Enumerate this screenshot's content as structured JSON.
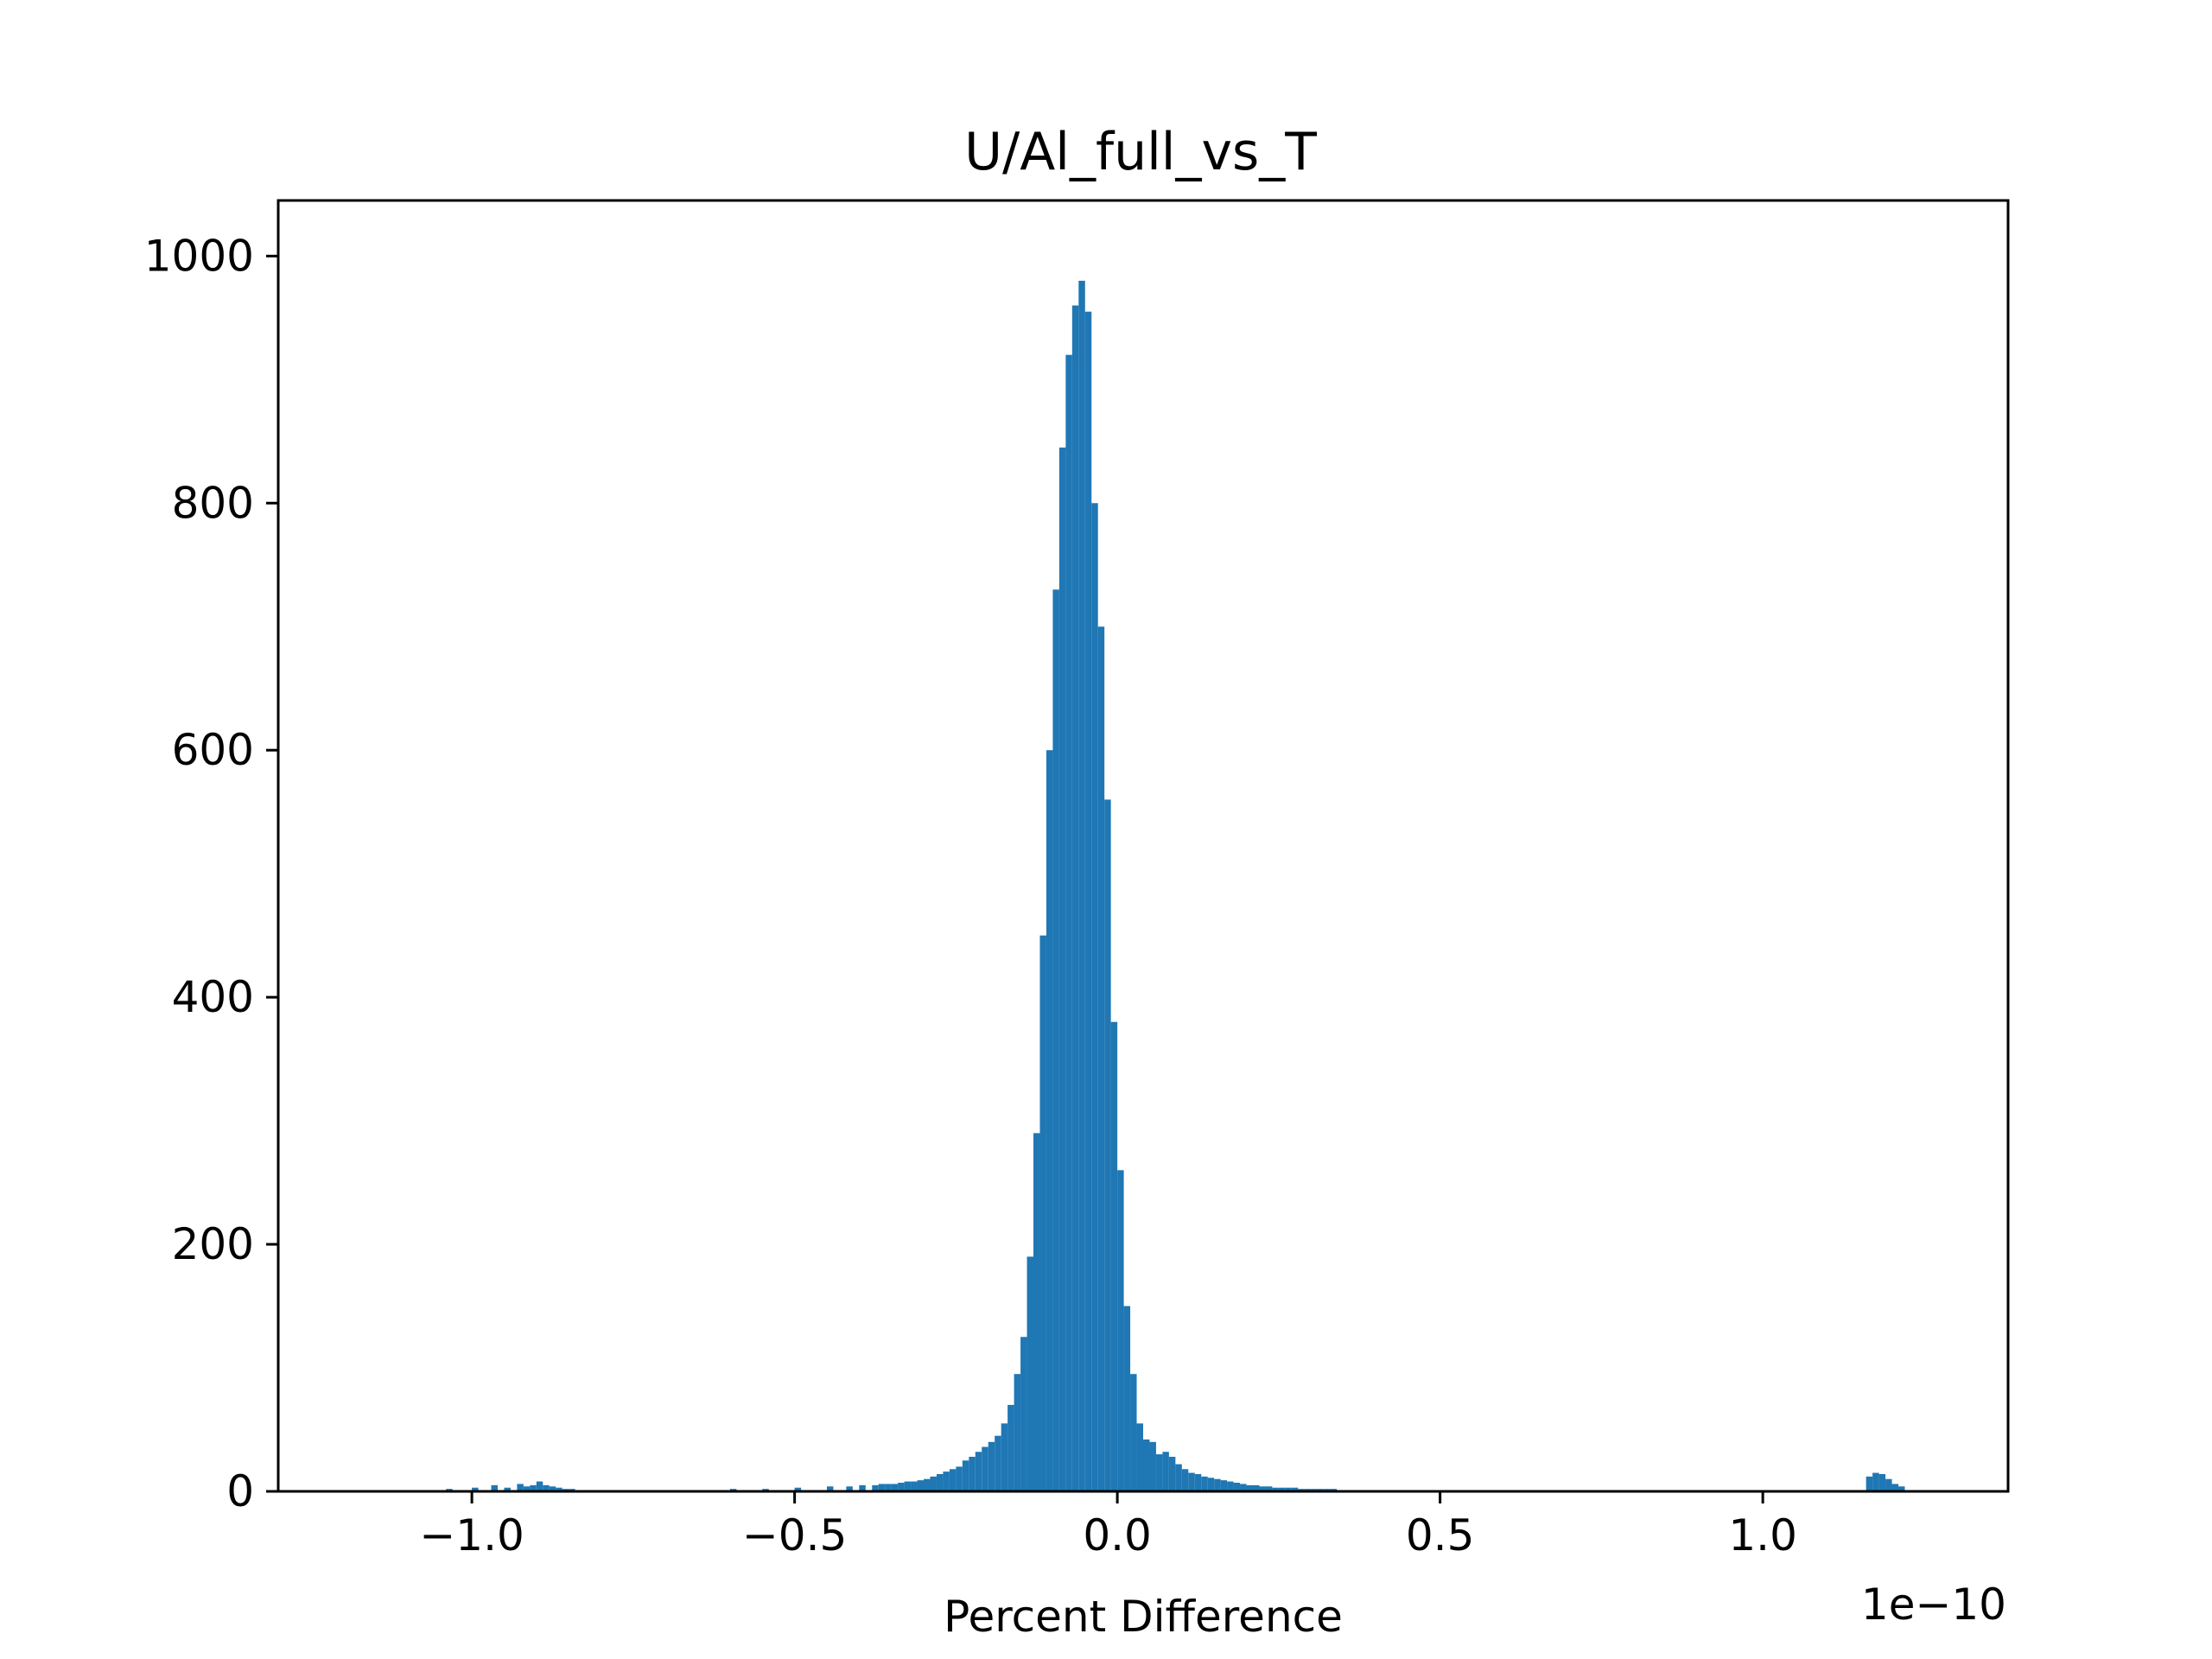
{
  "chart_data": {
    "type": "bar",
    "title": "U/Al_full_vs_T",
    "xlabel": "Percent Difference",
    "ylabel": "",
    "x_offset_label": "1e−10",
    "x_scale": 1e-10,
    "xlim": [
      -1.3,
      1.38
    ],
    "ylim": [
      0,
      1045
    ],
    "xticks": [
      -1.0,
      -0.5,
      0.0,
      0.5,
      1.0
    ],
    "xtick_labels": [
      "−1.0",
      "−0.5",
      "0.0",
      "0.5",
      "1.0"
    ],
    "yticks": [
      0,
      200,
      400,
      600,
      800,
      1000
    ],
    "ytick_labels": [
      "0",
      "200",
      "400",
      "600",
      "800",
      "1000"
    ],
    "grid": false,
    "bar_color": "#1f77b4",
    "bin_width": 0.01,
    "series": [
      {
        "bin_starts": [
          -1.04,
          -1.0,
          -0.97,
          -0.95,
          -0.93,
          -0.92,
          -0.91,
          -0.9,
          -0.89,
          -0.88,
          -0.87,
          -0.86,
          -0.85,
          -0.84,
          -0.82,
          -0.6,
          -0.55,
          -0.5,
          -0.45,
          -0.42,
          -0.4,
          -0.38,
          -0.37,
          -0.36,
          -0.35,
          -0.34,
          -0.33,
          -0.32,
          -0.31,
          -0.3,
          -0.29,
          -0.28,
          -0.27,
          -0.26,
          -0.25,
          -0.24,
          -0.23,
          -0.22,
          -0.21,
          -0.2,
          -0.19,
          -0.18,
          -0.17,
          -0.16,
          -0.15,
          -0.14,
          -0.13,
          -0.12,
          -0.11,
          -0.1,
          -0.09,
          -0.08,
          -0.07,
          -0.06,
          -0.05,
          -0.04,
          -0.03,
          -0.02,
          -0.01,
          0.0,
          0.01,
          0.02,
          0.03,
          0.04,
          0.05,
          0.06,
          0.07,
          0.08,
          0.09,
          0.1,
          0.11,
          0.12,
          0.13,
          0.14,
          0.15,
          0.16,
          0.17,
          0.18,
          0.19,
          0.2,
          0.21,
          0.22,
          0.23,
          0.24,
          0.25,
          0.26,
          0.27,
          0.28,
          0.29,
          0.3,
          0.31,
          0.32,
          0.33,
          0.34,
          0.35,
          0.36,
          0.37,
          0.38,
          0.4,
          0.42,
          0.45,
          0.48,
          0.5,
          0.53,
          0.56,
          0.6,
          0.65,
          0.7,
          1.16,
          1.17,
          1.18,
          1.19,
          1.2,
          1.21
        ],
        "values": [
          2,
          3,
          5,
          3,
          6,
          4,
          5,
          8,
          5,
          4,
          3,
          2,
          2,
          1,
          1,
          2,
          2,
          3,
          4,
          4,
          5,
          5,
          6,
          6,
          6,
          7,
          8,
          8,
          9,
          10,
          12,
          14,
          16,
          18,
          20,
          25,
          28,
          32,
          36,
          40,
          45,
          55,
          70,
          95,
          125,
          190,
          290,
          450,
          600,
          730,
          845,
          920,
          960,
          980,
          955,
          800,
          700,
          560,
          380,
          260,
          150,
          95,
          55,
          42,
          40,
          30,
          32,
          28,
          22,
          18,
          15,
          14,
          12,
          11,
          10,
          9,
          8,
          7,
          6,
          5,
          5,
          4,
          4,
          3,
          3,
          3,
          3,
          2,
          2,
          2,
          2,
          2,
          2,
          1,
          1,
          1,
          1,
          1,
          1,
          1,
          1,
          1,
          1,
          1,
          1,
          1,
          1,
          1,
          12,
          15,
          14,
          10,
          6,
          4
        ]
      }
    ]
  }
}
